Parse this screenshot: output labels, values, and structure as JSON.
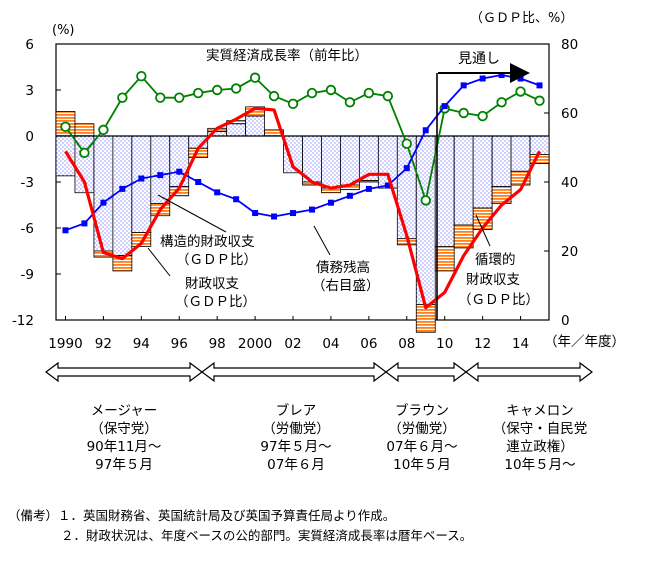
{
  "chart_data": {
    "type": "bar+line",
    "x": [
      1990,
      1991,
      1992,
      1993,
      1994,
      1995,
      1996,
      1997,
      1998,
      1999,
      2000,
      2001,
      2002,
      2003,
      2004,
      2005,
      2006,
      2007,
      2008,
      2009,
      2010,
      2011,
      2012,
      2013,
      2014,
      2015
    ],
    "x_tick_labels": [
      "1990",
      "92",
      "94",
      "96",
      "98",
      "2000",
      "02",
      "04",
      "06",
      "08",
      "10",
      "12",
      "14"
    ],
    "x_unit": "（年／年度）",
    "left_axis": {
      "unit": "(%)",
      "ylim": [
        -12,
        6
      ],
      "ticks": [
        6,
        3,
        0,
        -3,
        -6,
        -9,
        -12
      ]
    },
    "right_axis": {
      "unit": "（ＧＤＰ比、%）",
      "ylim": [
        0,
        80
      ],
      "ticks": [
        80,
        60,
        40,
        20,
        0
      ]
    },
    "series": [
      {
        "name": "構造的財政収支（ＧＤＰ比）",
        "type": "bar",
        "values": [
          -2.6,
          -3.7,
          -7.5,
          -7.8,
          -6.3,
          -4.4,
          -3.3,
          -0.8,
          0.3,
          0.8,
          1.3,
          0.0,
          -2.4,
          -3.0,
          -3.4,
          -3.2,
          -2.9,
          -3.4,
          -6.7,
          -11.0,
          -7.2,
          -5.8,
          -4.7,
          -3.3,
          -2.3,
          -1.2
        ]
      },
      {
        "name": "循環的財政収支（ＧＤＰ比）",
        "type": "bar",
        "values": [
          1.6,
          0.8,
          -0.4,
          -1.0,
          -0.9,
          -0.8,
          -0.6,
          -0.6,
          0.2,
          0.2,
          0.6,
          0.4,
          0.0,
          -0.2,
          -0.3,
          -0.3,
          -0.1,
          0.0,
          -0.4,
          -1.8,
          -1.6,
          -1.5,
          -1.4,
          -1.1,
          -0.9,
          -0.6
        ]
      },
      {
        "name": "財政収支（ＧＤＰ比）",
        "type": "line",
        "values": [
          -1.0,
          -3.0,
          -7.6,
          -8.0,
          -7.0,
          -4.8,
          -3.4,
          -0.8,
          0.5,
          1.1,
          1.8,
          1.7,
          -2.0,
          -3.0,
          -3.4,
          -3.2,
          -2.5,
          -2.5,
          -6.5,
          -11.2,
          -10.2,
          -7.8,
          -6.0,
          -4.5,
          -3.5,
          -1.0
        ]
      },
      {
        "name": "債務残高（右目盛）",
        "type": "line",
        "axis": "right",
        "values": [
          26,
          28,
          34,
          38,
          41,
          42,
          43,
          40,
          37,
          35,
          31,
          30,
          31,
          32,
          34,
          36,
          38,
          39,
          44,
          55,
          62,
          68,
          70,
          71,
          70,
          68
        ]
      },
      {
        "name": "実質経済成長率（前年比）",
        "type": "line",
        "values": [
          0.6,
          -1.1,
          0.4,
          2.5,
          3.9,
          2.5,
          2.5,
          2.8,
          3.0,
          3.1,
          3.8,
          2.6,
          2.1,
          2.8,
          3.0,
          2.2,
          2.8,
          2.6,
          -0.5,
          -4.2,
          1.8,
          1.5,
          1.3,
          2.2,
          2.9,
          2.3
        ]
      }
    ]
  },
  "labels": {
    "left_unit": "(%)",
    "right_unit": "（ＧＤＰ比、%）",
    "x_unit": "（年／年度）",
    "growth": "実質経済成長率（前年比）",
    "forecast": "見通し",
    "structural": [
      "構造的財政収支",
      "（ＧＤＰ比）"
    ],
    "fiscal": [
      "財政収支",
      "（ＧＤＰ比）"
    ],
    "debt": [
      "債務残高",
      "（右目盛）"
    ],
    "cyclical": [
      "循環的",
      "財政収支",
      "（ＧＤＰ比）"
    ]
  },
  "eras": [
    {
      "lines": [
        "メージャー",
        "（保守党）",
        "90年11月～",
        "97年５月"
      ]
    },
    {
      "lines": [
        "ブレア",
        "（労働党）",
        "97年５月～",
        "07年６月"
      ]
    },
    {
      "lines": [
        "ブラウン",
        "（労働党）",
        "07年６月～",
        "10年５月"
      ]
    },
    {
      "lines": [
        "キャメロン",
        "（保守・自民党",
        "連立政権）",
        "10年５月～"
      ]
    }
  ],
  "notes": {
    "line1": "（備考）１．英国財務省、英国統計局及び英国予算責任局より作成。",
    "line2": "２．財政状況は、年度ベースの公的部門。実質経済成長率は暦年ベース。"
  },
  "colors": {
    "fiscal": "#ff0000",
    "debt": "#0000ff",
    "growth": "#008000",
    "stripes": "#ff7f1a",
    "dots": "#0000cc"
  }
}
